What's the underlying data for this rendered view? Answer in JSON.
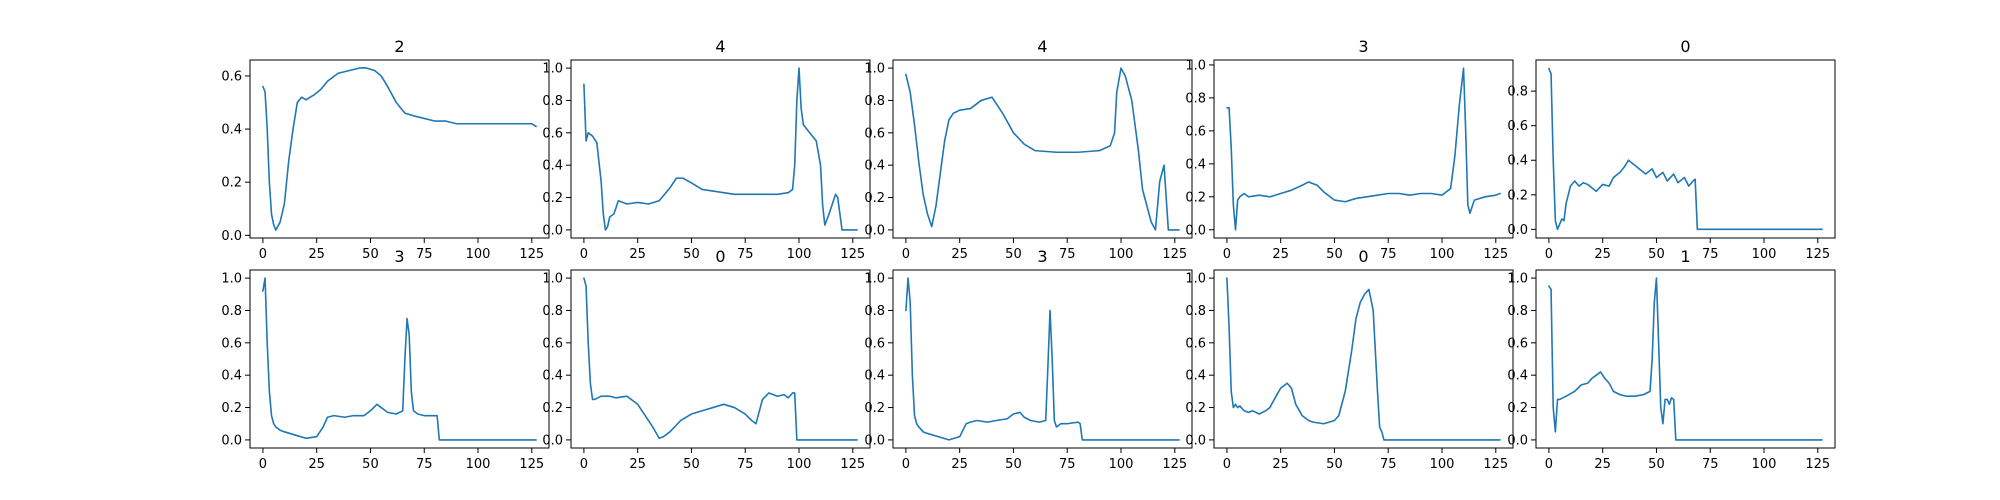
{
  "chart_data": [
    {
      "type": "line",
      "title": "2",
      "xlim": [
        -6,
        133
      ],
      "ylim": [
        -0.01,
        0.66
      ],
      "xticks": [
        0,
        25,
        50,
        75,
        100,
        125
      ],
      "yticks": [
        0.0,
        0.2,
        0.4,
        0.6
      ],
      "ytick_decimals": 1,
      "x": [
        0,
        1,
        2,
        3,
        4,
        5,
        6,
        8,
        10,
        12,
        14,
        16,
        18,
        20,
        22,
        24,
        27,
        30,
        35,
        40,
        45,
        48,
        52,
        55,
        58,
        62,
        66,
        70,
        75,
        80,
        85,
        90,
        95,
        100,
        105,
        110,
        115,
        120,
        125,
        127
      ],
      "y": [
        0.56,
        0.54,
        0.4,
        0.2,
        0.08,
        0.04,
        0.02,
        0.05,
        0.12,
        0.28,
        0.4,
        0.5,
        0.52,
        0.51,
        0.52,
        0.53,
        0.55,
        0.58,
        0.61,
        0.62,
        0.63,
        0.63,
        0.62,
        0.6,
        0.56,
        0.5,
        0.46,
        0.45,
        0.44,
        0.43,
        0.43,
        0.42,
        0.42,
        0.42,
        0.42,
        0.42,
        0.42,
        0.42,
        0.42,
        0.41
      ]
    },
    {
      "type": "line",
      "title": "4",
      "xlim": [
        -6,
        133
      ],
      "ylim": [
        -0.05,
        1.05
      ],
      "xticks": [
        0,
        25,
        50,
        75,
        100,
        125
      ],
      "yticks": [
        0.0,
        0.2,
        0.4,
        0.6,
        0.8,
        1.0
      ],
      "ytick_decimals": 1,
      "x": [
        0,
        1,
        2,
        4,
        6,
        8,
        9,
        10,
        11,
        12,
        14,
        16,
        18,
        20,
        25,
        30,
        35,
        40,
        43,
        46,
        50,
        55,
        60,
        70,
        80,
        90,
        95,
        97,
        98,
        99,
        100,
        101,
        102,
        105,
        108,
        110,
        111,
        112,
        114,
        116,
        117,
        118,
        120,
        127
      ],
      "y": [
        0.9,
        0.55,
        0.6,
        0.58,
        0.54,
        0.3,
        0.1,
        0.0,
        0.02,
        0.08,
        0.1,
        0.18,
        0.17,
        0.16,
        0.17,
        0.16,
        0.18,
        0.26,
        0.32,
        0.32,
        0.29,
        0.25,
        0.24,
        0.22,
        0.22,
        0.22,
        0.23,
        0.25,
        0.4,
        0.8,
        1.0,
        0.75,
        0.65,
        0.6,
        0.55,
        0.4,
        0.15,
        0.03,
        0.1,
        0.18,
        0.22,
        0.2,
        0.0,
        0.0
      ]
    },
    {
      "type": "line",
      "title": "4",
      "xlim": [
        -6,
        133
      ],
      "ylim": [
        -0.05,
        1.05
      ],
      "xticks": [
        0,
        25,
        50,
        75,
        100,
        125
      ],
      "yticks": [
        0.0,
        0.2,
        0.4,
        0.6,
        0.8,
        1.0
      ],
      "ytick_decimals": 1,
      "x": [
        0,
        2,
        4,
        6,
        8,
        10,
        12,
        14,
        16,
        18,
        20,
        22,
        25,
        30,
        35,
        40,
        45,
        50,
        55,
        60,
        70,
        80,
        90,
        95,
        97,
        98,
        100,
        102,
        105,
        108,
        110,
        112,
        114,
        116,
        118,
        120,
        122,
        127
      ],
      "y": [
        0.96,
        0.85,
        0.65,
        0.42,
        0.22,
        0.1,
        0.02,
        0.15,
        0.35,
        0.55,
        0.68,
        0.72,
        0.74,
        0.75,
        0.8,
        0.82,
        0.72,
        0.6,
        0.53,
        0.49,
        0.48,
        0.48,
        0.49,
        0.52,
        0.6,
        0.85,
        1.0,
        0.95,
        0.8,
        0.5,
        0.25,
        0.15,
        0.05,
        0.0,
        0.3,
        0.4,
        0.0,
        0.0
      ]
    },
    {
      "type": "line",
      "title": "3",
      "xlim": [
        -6,
        133
      ],
      "ylim": [
        -0.05,
        1.03
      ],
      "xticks": [
        0,
        25,
        50,
        75,
        100,
        125
      ],
      "yticks": [
        0.0,
        0.2,
        0.4,
        0.6,
        0.8,
        1.0
      ],
      "ytick_decimals": 1,
      "x": [
        0,
        1,
        2,
        3,
        4,
        5,
        6,
        8,
        10,
        15,
        20,
        25,
        30,
        35,
        38,
        42,
        45,
        50,
        55,
        60,
        65,
        70,
        75,
        80,
        85,
        90,
        95,
        100,
        104,
        106,
        108,
        110,
        111,
        112,
        113,
        115,
        120,
        125,
        127
      ],
      "y": [
        0.74,
        0.74,
        0.5,
        0.15,
        0.0,
        0.18,
        0.2,
        0.22,
        0.2,
        0.21,
        0.2,
        0.22,
        0.24,
        0.27,
        0.29,
        0.27,
        0.23,
        0.18,
        0.17,
        0.19,
        0.2,
        0.21,
        0.22,
        0.22,
        0.21,
        0.22,
        0.22,
        0.21,
        0.25,
        0.45,
        0.75,
        0.98,
        0.6,
        0.15,
        0.1,
        0.18,
        0.2,
        0.21,
        0.22
      ]
    },
    {
      "type": "line",
      "title": "0",
      "xlim": [
        -6,
        133
      ],
      "ylim": [
        -0.05,
        0.98
      ],
      "xticks": [
        0,
        25,
        50,
        75,
        100,
        125
      ],
      "yticks": [
        0.0,
        0.2,
        0.4,
        0.6,
        0.8
      ],
      "ytick_decimals": 1,
      "x": [
        0,
        1,
        2,
        3,
        4,
        5,
        6,
        7,
        8,
        10,
        12,
        14,
        16,
        18,
        20,
        22,
        25,
        28,
        30,
        33,
        35,
        37,
        40,
        42,
        45,
        48,
        50,
        53,
        55,
        58,
        60,
        63,
        65,
        67,
        68,
        69,
        70,
        75,
        100,
        127
      ],
      "y": [
        0.93,
        0.9,
        0.4,
        0.05,
        0.0,
        0.03,
        0.06,
        0.05,
        0.15,
        0.25,
        0.28,
        0.25,
        0.27,
        0.26,
        0.24,
        0.22,
        0.26,
        0.25,
        0.3,
        0.33,
        0.36,
        0.4,
        0.37,
        0.35,
        0.32,
        0.35,
        0.3,
        0.33,
        0.28,
        0.32,
        0.27,
        0.3,
        0.25,
        0.28,
        0.29,
        0.0,
        0.0,
        0.0,
        0.0,
        0.0
      ]
    },
    {
      "type": "line",
      "title": "3",
      "xlim": [
        -6,
        133
      ],
      "ylim": [
        -0.05,
        1.05
      ],
      "xticks": [
        0,
        25,
        50,
        75,
        100,
        125
      ],
      "yticks": [
        0.0,
        0.2,
        0.4,
        0.6,
        0.8,
        1.0
      ],
      "ytick_decimals": 1,
      "x": [
        0,
        1,
        2,
        3,
        4,
        5,
        6,
        8,
        10,
        15,
        20,
        25,
        28,
        30,
        33,
        38,
        42,
        47,
        50,
        53,
        55,
        58,
        62,
        65,
        66,
        67,
        68,
        69,
        70,
        72,
        75,
        80,
        81,
        82,
        84,
        100,
        127
      ],
      "y": [
        0.92,
        1.0,
        0.6,
        0.3,
        0.15,
        0.1,
        0.08,
        0.06,
        0.05,
        0.03,
        0.01,
        0.02,
        0.08,
        0.14,
        0.15,
        0.14,
        0.15,
        0.15,
        0.18,
        0.22,
        0.2,
        0.17,
        0.16,
        0.18,
        0.5,
        0.75,
        0.65,
        0.3,
        0.18,
        0.16,
        0.15,
        0.15,
        0.15,
        0.0,
        0.0,
        0.0,
        0.0
      ]
    },
    {
      "type": "line",
      "title": "0",
      "xlim": [
        -6,
        133
      ],
      "ylim": [
        -0.05,
        1.05
      ],
      "xticks": [
        0,
        25,
        50,
        75,
        100,
        125
      ],
      "yticks": [
        0.0,
        0.2,
        0.4,
        0.6,
        0.8,
        1.0
      ],
      "ytick_decimals": 1,
      "x": [
        0,
        1,
        2,
        3,
        4,
        5,
        8,
        12,
        15,
        20,
        25,
        28,
        32,
        35,
        37,
        40,
        45,
        50,
        55,
        60,
        65,
        70,
        75,
        78,
        80,
        83,
        86,
        90,
        93,
        95,
        97,
        98,
        99,
        100,
        105,
        127
      ],
      "y": [
        1.0,
        0.95,
        0.6,
        0.35,
        0.25,
        0.25,
        0.27,
        0.27,
        0.26,
        0.27,
        0.22,
        0.16,
        0.08,
        0.01,
        0.02,
        0.05,
        0.12,
        0.16,
        0.18,
        0.2,
        0.22,
        0.2,
        0.16,
        0.12,
        0.1,
        0.25,
        0.29,
        0.27,
        0.28,
        0.26,
        0.29,
        0.29,
        0.0,
        0.0,
        0.0,
        0.0
      ]
    },
    {
      "type": "line",
      "title": "3",
      "xlim": [
        -6,
        133
      ],
      "ylim": [
        -0.05,
        1.05
      ],
      "xticks": [
        0,
        25,
        50,
        75,
        100,
        125
      ],
      "yticks": [
        0.0,
        0.2,
        0.4,
        0.6,
        0.8,
        1.0
      ],
      "ytick_decimals": 1,
      "x": [
        0,
        1,
        2,
        3,
        4,
        5,
        6,
        8,
        10,
        15,
        20,
        25,
        28,
        30,
        33,
        38,
        42,
        47,
        50,
        53,
        55,
        58,
        62,
        65,
        66,
        67,
        68,
        69,
        70,
        72,
        75,
        80,
        81,
        82,
        84,
        100,
        127
      ],
      "y": [
        0.8,
        1.0,
        0.85,
        0.4,
        0.15,
        0.1,
        0.08,
        0.05,
        0.04,
        0.02,
        0.0,
        0.02,
        0.1,
        0.11,
        0.12,
        0.11,
        0.12,
        0.13,
        0.16,
        0.17,
        0.14,
        0.12,
        0.11,
        0.12,
        0.45,
        0.8,
        0.5,
        0.12,
        0.08,
        0.1,
        0.1,
        0.11,
        0.1,
        0.0,
        0.0,
        0.0,
        0.0
      ]
    },
    {
      "type": "line",
      "title": "0",
      "xlim": [
        -6,
        133
      ],
      "ylim": [
        -0.05,
        1.05
      ],
      "xticks": [
        0,
        25,
        50,
        75,
        100,
        125
      ],
      "yticks": [
        0.0,
        0.2,
        0.4,
        0.6,
        0.8,
        1.0
      ],
      "ytick_decimals": 1,
      "x": [
        0,
        1,
        2,
        3,
        4,
        5,
        6,
        8,
        10,
        12,
        15,
        18,
        20,
        22,
        25,
        28,
        30,
        32,
        35,
        38,
        40,
        45,
        50,
        52,
        55,
        58,
        60,
        62,
        64,
        66,
        68,
        70,
        71,
        72,
        73,
        75,
        100,
        127
      ],
      "y": [
        1.0,
        0.7,
        0.3,
        0.2,
        0.22,
        0.2,
        0.21,
        0.18,
        0.17,
        0.18,
        0.16,
        0.18,
        0.2,
        0.25,
        0.32,
        0.35,
        0.32,
        0.22,
        0.15,
        0.12,
        0.11,
        0.1,
        0.12,
        0.15,
        0.3,
        0.55,
        0.75,
        0.85,
        0.9,
        0.93,
        0.8,
        0.3,
        0.08,
        0.05,
        0.0,
        0.0,
        0.0,
        0.0
      ]
    },
    {
      "type": "line",
      "title": "1",
      "xlim": [
        -6,
        133
      ],
      "ylim": [
        -0.05,
        1.05
      ],
      "xticks": [
        0,
        25,
        50,
        75,
        100,
        125
      ],
      "yticks": [
        0.0,
        0.2,
        0.4,
        0.6,
        0.8,
        1.0
      ],
      "ytick_decimals": 1,
      "x": [
        0,
        1,
        2,
        3,
        4,
        5,
        8,
        12,
        15,
        18,
        20,
        22,
        24,
        26,
        28,
        30,
        33,
        36,
        40,
        44,
        47,
        48,
        49,
        50,
        51,
        52,
        53,
        54,
        55,
        56,
        57,
        58,
        59,
        60,
        65,
        100,
        127
      ],
      "y": [
        0.95,
        0.93,
        0.2,
        0.05,
        0.25,
        0.25,
        0.27,
        0.3,
        0.34,
        0.35,
        0.38,
        0.4,
        0.42,
        0.38,
        0.35,
        0.3,
        0.28,
        0.27,
        0.27,
        0.28,
        0.3,
        0.5,
        0.85,
        1.0,
        0.6,
        0.2,
        0.1,
        0.25,
        0.25,
        0.22,
        0.26,
        0.25,
        0.0,
        0.0,
        0.0,
        0.0,
        0.0
      ]
    }
  ],
  "style": {
    "line_color": "#1f77b4",
    "frame_color": "#000000",
    "background": "#ffffff"
  }
}
